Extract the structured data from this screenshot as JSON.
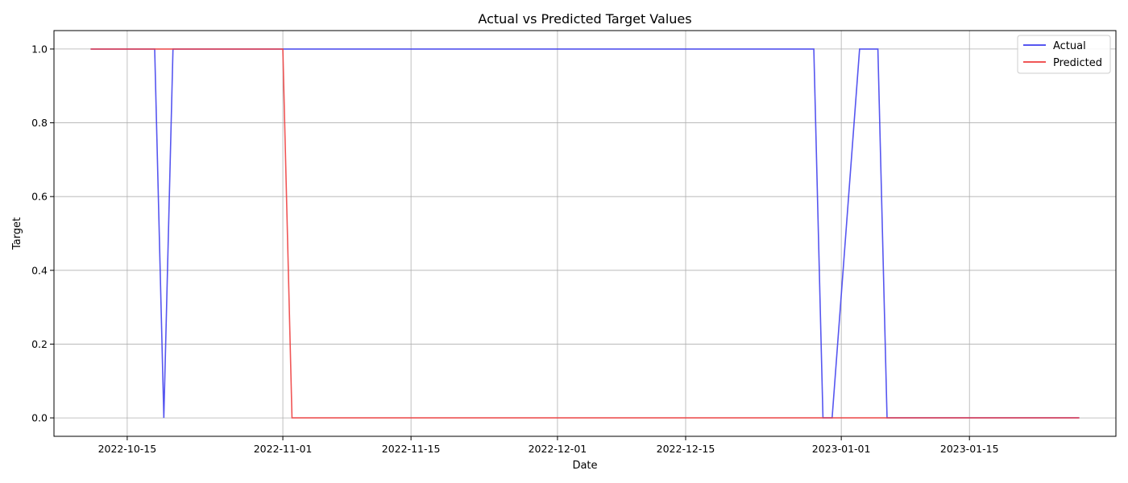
{
  "chart_data": {
    "type": "line",
    "title": "Actual vs Predicted Target Values",
    "xlabel": "Date",
    "ylabel": "Target",
    "x_range": [
      "2022-10-07",
      "2023-01-31"
    ],
    "ylim": [
      -0.05,
      1.05
    ],
    "grid": true,
    "legend_position": "top-right",
    "x_ticks": [
      "2022-10-15",
      "2022-11-01",
      "2022-11-15",
      "2022-12-01",
      "2022-12-15",
      "2023-01-01",
      "2023-01-15"
    ],
    "y_ticks": [
      0.0,
      0.2,
      0.4,
      0.6,
      0.8,
      1.0
    ],
    "y_tick_labels": [
      "0.0",
      "0.2",
      "0.4",
      "0.6",
      "0.8",
      "1.0"
    ],
    "series": [
      {
        "name": "Actual",
        "color": "#4444ee",
        "points": [
          [
            "2022-10-11",
            1
          ],
          [
            "2022-10-18",
            1
          ],
          [
            "2022-10-19",
            0
          ],
          [
            "2022-10-20",
            1
          ],
          [
            "2022-12-29",
            1
          ],
          [
            "2022-12-30",
            0
          ],
          [
            "2022-12-31",
            0
          ],
          [
            "2023-01-03",
            1
          ],
          [
            "2023-01-05",
            1
          ],
          [
            "2023-01-06",
            0
          ],
          [
            "2023-01-27",
            0
          ]
        ]
      },
      {
        "name": "Predicted",
        "color": "#ee4444",
        "points": [
          [
            "2022-10-11",
            1
          ],
          [
            "2022-11-01",
            1
          ],
          [
            "2022-11-02",
            0
          ],
          [
            "2023-01-27",
            0
          ]
        ]
      }
    ]
  }
}
